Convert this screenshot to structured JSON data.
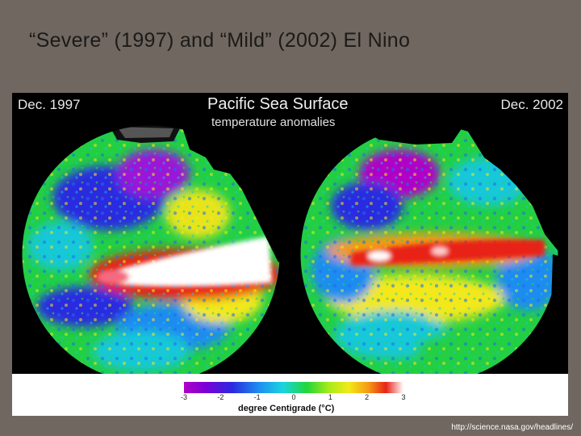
{
  "slide": {
    "title": "“Severe” (1997) and “Mild” (2002) El Nino",
    "source_url": "http://science.nasa.gov/headlines/"
  },
  "figure": {
    "left_label": "Dec. 1997",
    "right_label": "Dec. 2002",
    "title": "Pacific Sea Surface",
    "subtitle": "temperature anomalies"
  },
  "colorbar": {
    "ticks": [
      "-3",
      "-2",
      "-1",
      "0",
      "1",
      "2",
      "3"
    ],
    "caption": "degree Centigrade (°C)",
    "colors": [
      "#b000c8",
      "#2a2ae0",
      "#1f8cf0",
      "#19d4e0",
      "#22d63a",
      "#f2ea18",
      "#f59a16",
      "#e82418",
      "#ffffff"
    ]
  },
  "globes": [
    {
      "name": "globe-1997",
      "anomaly_band": "strong warm anomaly (white)"
    },
    {
      "name": "globe-2002",
      "anomaly_band": "moderate warm anomaly (red)"
    }
  ]
}
